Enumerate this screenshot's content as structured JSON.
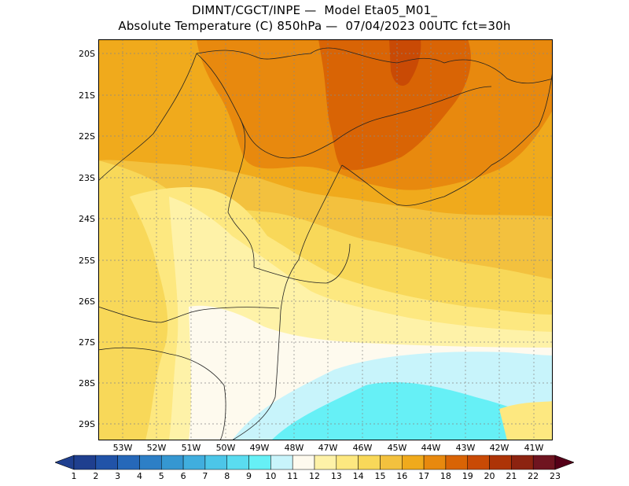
{
  "title_line1": "DIMNT/CGCT/INPE —  Model Eta05_M01_",
  "title_line2": "Absolute Temperature (C) 850hPa —  07/04/2023 00UTC fct=30h",
  "latitude_labels": [
    "20S",
    "21S",
    "22S",
    "23S",
    "24S",
    "25S",
    "26S",
    "27S",
    "28S",
    "29S"
  ],
  "longitude_labels": [
    "53W",
    "52W",
    "51W",
    "50W",
    "49W",
    "48W",
    "47W",
    "46W",
    "45W",
    "44W",
    "43W",
    "42W",
    "41W"
  ],
  "colorbar": {
    "labels": [
      "1",
      "2",
      "3",
      "4",
      "5",
      "6",
      "7",
      "8",
      "9",
      "10",
      "11",
      "12",
      "13",
      "14",
      "15",
      "16",
      "17",
      "18",
      "19",
      "20",
      "21",
      "22",
      "23"
    ],
    "colors": [
      "#1f3f8f",
      "#1f3f8f",
      "#2153a8",
      "#2668b9",
      "#2d7fc6",
      "#3597d1",
      "#40aede",
      "#4cc6e8",
      "#5adcf0",
      "#66f0f6",
      "#c8f4fb",
      "#fefaee",
      "#fef2a8",
      "#fde880",
      "#f8d859",
      "#f3c13e",
      "#f0aa1c",
      "#e8890e",
      "#d96405",
      "#c94a05",
      "#ad3407",
      "#8c2310",
      "#6f1420",
      "#550018"
    ]
  },
  "map_colors": {
    "t11": "#c8f4fb",
    "t10": "#66f0f6",
    "t12": "#fefaee",
    "t13": "#fef2a8",
    "t14": "#fde880",
    "t15": "#f8d859",
    "t16": "#f3c13e",
    "t17": "#f0aa1c",
    "t18": "#e8890e",
    "t19": "#d96405",
    "t20": "#c94a05"
  }
}
